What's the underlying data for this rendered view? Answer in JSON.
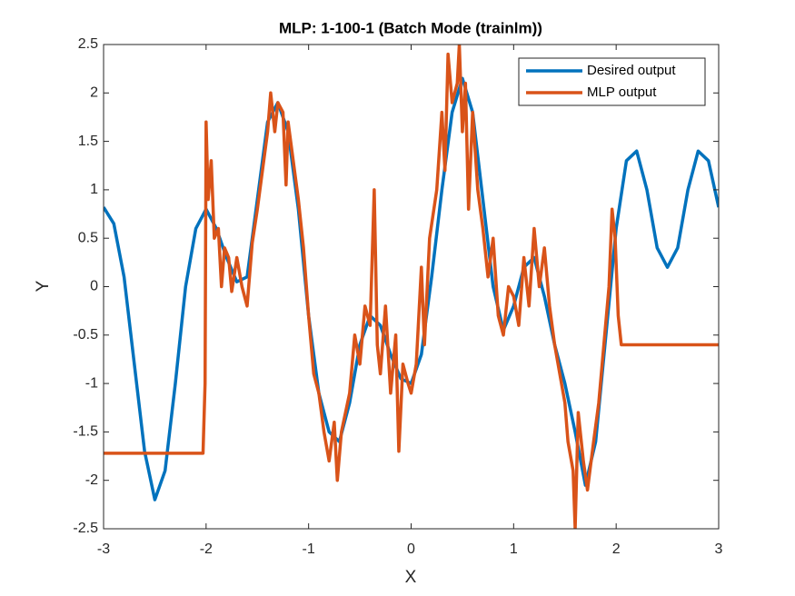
{
  "chart_data": {
    "type": "line",
    "title": "MLP: 1-100-1 (Batch Mode (trainlm))",
    "x_label": "X",
    "y_label": "Y",
    "xlim": [
      -3,
      3
    ],
    "ylim": [
      -2.5,
      2.5
    ],
    "xticks": [
      -3,
      -2,
      -1,
      0,
      1,
      2,
      3
    ],
    "yticks": [
      -2.5,
      -2,
      -1.5,
      -1,
      -0.5,
      0,
      0.5,
      1,
      1.5,
      2,
      2.5
    ],
    "legend": "upper right",
    "series": [
      {
        "name": "Desired output",
        "color": "#0072BD",
        "x": [
          -3,
          -2.9,
          -2.8,
          -2.7,
          -2.6,
          -2.5,
          -2.4,
          -2.3,
          -2.2,
          -2.1,
          -2,
          -1.9,
          -1.8,
          -1.7,
          -1.6,
          -1.5,
          -1.4,
          -1.3,
          -1.2,
          -1.1,
          -1,
          -0.9,
          -0.8,
          -0.7,
          -0.6,
          -0.5,
          -0.4,
          -0.3,
          -0.2,
          -0.1,
          0,
          0.1,
          0.2,
          0.3,
          0.4,
          0.5,
          0.6,
          0.7,
          0.8,
          0.9,
          1,
          1.1,
          1.2,
          1.3,
          1.4,
          1.5,
          1.6,
          1.7,
          1.8,
          1.9,
          2,
          2.1,
          2.2,
          2.3,
          2.4,
          2.5,
          2.6,
          2.7,
          2.8,
          2.9,
          3
        ],
        "values": [
          0.82,
          0.65,
          0.1,
          -0.8,
          -1.7,
          -2.2,
          -1.9,
          -1.0,
          0.0,
          0.6,
          0.8,
          0.6,
          0.3,
          0.05,
          0.1,
          0.9,
          1.7,
          1.9,
          1.6,
          0.8,
          -0.3,
          -1.1,
          -1.5,
          -1.6,
          -1.2,
          -0.6,
          -0.3,
          -0.4,
          -0.7,
          -0.95,
          -1.0,
          -0.7,
          0.1,
          1.0,
          1.8,
          2.15,
          1.8,
          0.9,
          0.0,
          -0.45,
          -0.2,
          0.2,
          0.3,
          -0.1,
          -0.6,
          -1.0,
          -1.5,
          -2.05,
          -1.6,
          -0.5,
          0.6,
          1.3,
          1.4,
          1.0,
          0.4,
          0.2,
          0.4,
          1.0,
          1.4,
          1.3,
          0.82
        ]
      },
      {
        "name": "MLP output",
        "color": "#D95319",
        "x": [
          -3,
          -2.03,
          -2.01,
          -2,
          -1.98,
          -1.95,
          -1.92,
          -1.88,
          -1.85,
          -1.82,
          -1.78,
          -1.75,
          -1.7,
          -1.65,
          -1.6,
          -1.55,
          -1.5,
          -1.45,
          -1.4,
          -1.37,
          -1.33,
          -1.3,
          -1.25,
          -1.22,
          -1.2,
          -1.15,
          -1.1,
          -1.05,
          -1,
          -0.95,
          -0.9,
          -0.85,
          -0.8,
          -0.75,
          -0.72,
          -0.68,
          -0.6,
          -0.55,
          -0.5,
          -0.45,
          -0.4,
          -0.36,
          -0.33,
          -0.3,
          -0.25,
          -0.2,
          -0.15,
          -0.12,
          -0.08,
          -0.03,
          0,
          0.05,
          0.1,
          0.13,
          0.18,
          0.25,
          0.3,
          0.33,
          0.36,
          0.4,
          0.45,
          0.47,
          0.5,
          0.53,
          0.56,
          0.6,
          0.65,
          0.7,
          0.75,
          0.8,
          0.85,
          0.9,
          0.95,
          1,
          1.05,
          1.1,
          1.15,
          1.2,
          1.25,
          1.3,
          1.35,
          1.4,
          1.45,
          1.5,
          1.53,
          1.58,
          1.6,
          1.63,
          1.68,
          1.72,
          1.78,
          1.83,
          1.88,
          1.93,
          1.96,
          1.99,
          2.02,
          2.05,
          3
        ],
        "values": [
          -1.72,
          -1.72,
          -1.0,
          1.7,
          0.9,
          1.3,
          0.5,
          0.6,
          0.0,
          0.4,
          0.3,
          -0.05,
          0.3,
          0.0,
          -0.2,
          0.45,
          0.8,
          1.2,
          1.6,
          2.0,
          1.6,
          1.9,
          1.8,
          1.05,
          1.7,
          1.3,
          0.9,
          0.4,
          -0.3,
          -0.9,
          -1.1,
          -1.5,
          -1.8,
          -1.4,
          -2.0,
          -1.5,
          -1.1,
          -0.5,
          -0.8,
          -0.2,
          -0.4,
          1.0,
          -0.6,
          -0.9,
          -0.2,
          -1.1,
          -0.5,
          -1.7,
          -0.8,
          -1.0,
          -1.1,
          -0.8,
          0.2,
          -0.6,
          0.5,
          1.0,
          1.8,
          1.2,
          2.4,
          1.9,
          2.1,
          2.5,
          1.6,
          2.1,
          0.8,
          1.8,
          1.0,
          0.6,
          0.1,
          0.5,
          -0.3,
          -0.5,
          0.0,
          -0.1,
          -0.4,
          0.3,
          -0.2,
          0.6,
          0.0,
          0.4,
          -0.2,
          -0.6,
          -0.9,
          -1.2,
          -1.6,
          -1.9,
          -2.5,
          -1.3,
          -1.8,
          -2.1,
          -1.6,
          -1.2,
          -0.6,
          0.0,
          0.8,
          0.5,
          -0.3,
          -0.6,
          -0.6
        ]
      }
    ]
  }
}
